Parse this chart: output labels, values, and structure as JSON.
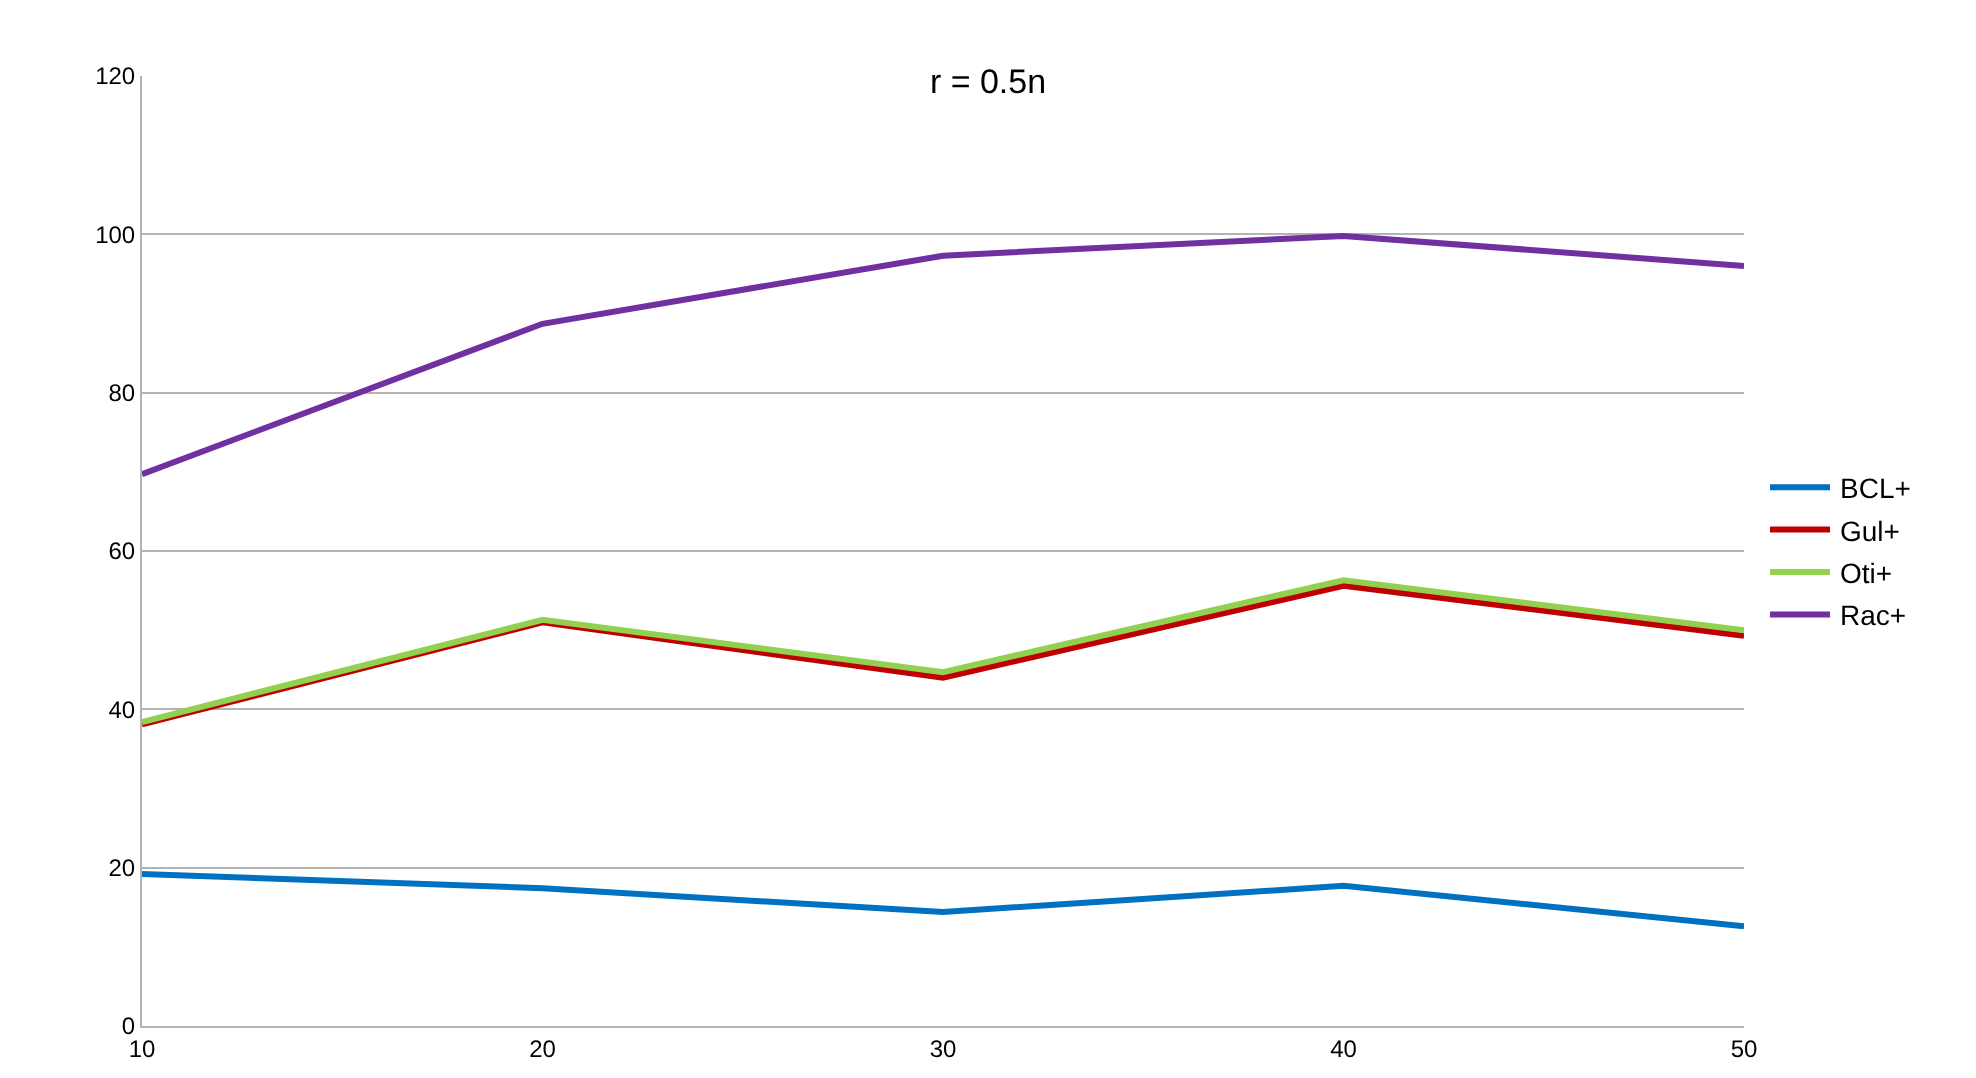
{
  "chart_data": {
    "type": "line",
    "title": "r = 0.5n",
    "x": [
      10,
      20,
      30,
      40,
      50
    ],
    "series": [
      {
        "name": "BCL+",
        "color": "#0070c0",
        "values": [
          19.2,
          17.4,
          14.4,
          17.7,
          12.6
        ]
      },
      {
        "name": "Gul+",
        "color": "#c00000",
        "values": [
          38.1,
          51.0,
          44.0,
          55.6,
          49.3
        ]
      },
      {
        "name": "Oti+",
        "color": "#92d050",
        "values": [
          38.4,
          51.3,
          44.7,
          56.3,
          50.0
        ]
      },
      {
        "name": "Rac+",
        "color": "#7030a0",
        "values": [
          69.7,
          88.7,
          97.3,
          99.8,
          96.0
        ]
      }
    ],
    "xlim": [
      10,
      50
    ],
    "xticks": [
      10,
      20,
      30,
      40,
      50
    ],
    "ylim": [
      0,
      120
    ],
    "yticks": [
      0,
      20,
      40,
      60,
      80,
      100,
      120
    ],
    "grid": "y",
    "legend": "right",
    "marker": "none",
    "line_style": "solid"
  }
}
